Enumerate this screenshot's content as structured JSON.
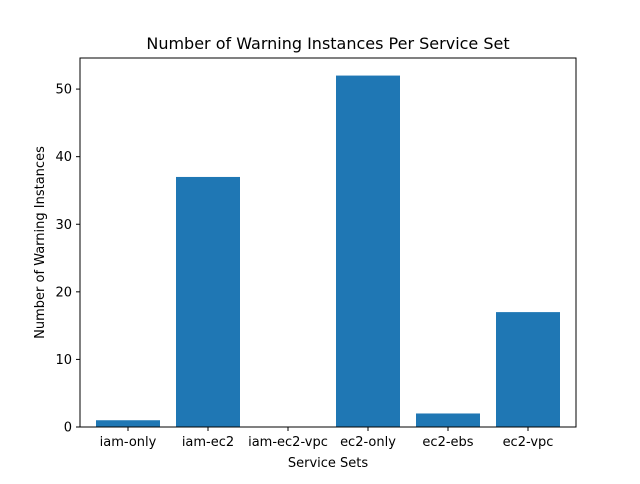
{
  "chart_data": {
    "type": "bar",
    "title": "Number of Warning Instances Per Service Set",
    "xlabel": "Service Sets",
    "ylabel": "Number of Warning Instances",
    "categories": [
      "iam-only",
      "iam-ec2",
      "iam-ec2-vpc",
      "ec2-only",
      "ec2-ebs",
      "ec2-vpc"
    ],
    "values": [
      1,
      37,
      0,
      52,
      2,
      17
    ],
    "ylim": [
      0,
      54.6
    ],
    "yticks": [
      0,
      10,
      20,
      30,
      40,
      50
    ],
    "grid": false,
    "bar_color": "#1f77b4"
  }
}
